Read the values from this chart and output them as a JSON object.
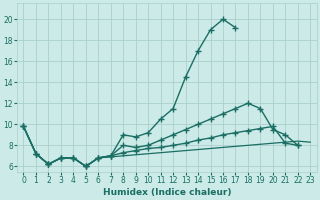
{
  "bg_color": "#cceae8",
  "grid_color": "#aacfcc",
  "line_color": "#1a6e63",
  "xlabel": "Humidex (Indice chaleur)",
  "xlim": [
    -0.5,
    23.5
  ],
  "ylim": [
    5.5,
    21.5
  ],
  "yticks": [
    6,
    8,
    10,
    12,
    14,
    16,
    18,
    20
  ],
  "xticks": [
    0,
    1,
    2,
    3,
    4,
    5,
    6,
    7,
    8,
    9,
    10,
    11,
    12,
    13,
    14,
    15,
    16,
    17,
    18,
    19,
    20,
    21,
    22,
    23
  ],
  "lines": [
    {
      "x": [
        0,
        1,
        2,
        3,
        4,
        5,
        6,
        7,
        8,
        9,
        10,
        11,
        12,
        13,
        14,
        15,
        16,
        17
      ],
      "y": [
        9.8,
        7.2,
        6.2,
        6.8,
        6.8,
        6.0,
        6.8,
        7.0,
        9.0,
        8.8,
        9.2,
        10.5,
        11.5,
        14.5,
        17.0,
        19.0,
        20.0,
        19.2
      ]
    },
    {
      "x": [
        0,
        1,
        2,
        3,
        4,
        5,
        6,
        7,
        8,
        9,
        10,
        11,
        12,
        13,
        14,
        15,
        16,
        17,
        18,
        19,
        20,
        21,
        22
      ],
      "y": [
        9.8,
        7.2,
        6.2,
        6.8,
        6.8,
        6.0,
        6.8,
        7.0,
        8.0,
        7.8,
        8.0,
        8.5,
        9.0,
        9.5,
        10.0,
        10.5,
        11.0,
        11.5,
        12.0,
        11.5,
        9.5,
        9.0,
        8.0
      ]
    },
    {
      "x": [
        0,
        1,
        2,
        3,
        4,
        5,
        6,
        7,
        8,
        9,
        10,
        11,
        12,
        13,
        14,
        15,
        16,
        17,
        18,
        19,
        20,
        21,
        22
      ],
      "y": [
        9.8,
        7.2,
        6.2,
        6.8,
        6.8,
        6.0,
        6.8,
        7.0,
        7.3,
        7.5,
        7.7,
        7.8,
        8.0,
        8.2,
        8.5,
        8.7,
        9.0,
        9.2,
        9.4,
        9.6,
        9.8,
        8.2,
        8.0
      ]
    },
    {
      "x": [
        0,
        1,
        2,
        3,
        4,
        5,
        6,
        7,
        8,
        9,
        10,
        11,
        12,
        13,
        14,
        15,
        16,
        17,
        18,
        19,
        20,
        21,
        22,
        23
      ],
      "y": [
        9.8,
        7.2,
        6.2,
        6.8,
        6.8,
        6.0,
        6.8,
        6.9,
        7.0,
        7.1,
        7.2,
        7.3,
        7.4,
        7.5,
        7.6,
        7.7,
        7.8,
        7.9,
        8.0,
        8.1,
        8.2,
        8.3,
        8.4,
        8.3
      ]
    }
  ]
}
